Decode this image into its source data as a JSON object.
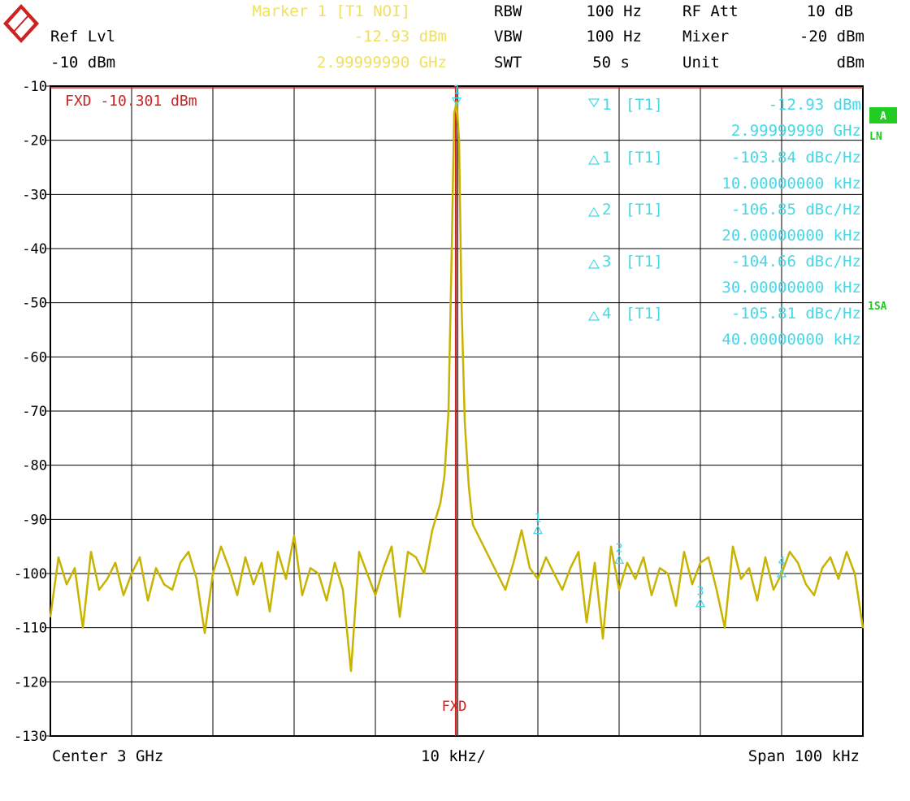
{
  "header": {
    "marker_title": "Marker 1 [T1 NOI]",
    "ref_lvl_label": "Ref Lvl",
    "ref_lvl_value": "-10 dBm",
    "marker_level": "-12.93 dBm",
    "marker_freq": "2.99999990 GHz",
    "rbw_label": "RBW",
    "rbw_value": "100 Hz",
    "vbw_label": "VBW",
    "vbw_value": "100 Hz",
    "swt_label": "SWT",
    "swt_value": "50 s",
    "rfatt_label": "RF Att",
    "rfatt_value": "10 dB",
    "mixer_label": "Mixer",
    "mixer_value": "-20 dBm",
    "unit_label": "Unit",
    "unit_value": "dBm"
  },
  "side": {
    "trace_badge": "A",
    "ln_label": "LN",
    "sa_label": "1SA"
  },
  "colors": {
    "trace": "#c8b400",
    "marker": "#44d8e8",
    "fxd": "#cc2222",
    "badge": "#22cc22"
  },
  "chart_data": {
    "type": "line",
    "x_unit": "kHz offset from center",
    "xlim": [
      -50,
      50
    ],
    "ylim": [
      -130,
      -10
    ],
    "y_ticks": [
      -10,
      -20,
      -30,
      -40,
      -50,
      -60,
      -70,
      -80,
      -90,
      -100,
      -110,
      -120,
      -130
    ],
    "x_divisions": 10,
    "grid": true,
    "footer_left": "Center 3 GHz",
    "footer_center": "10 kHz/",
    "footer_right": "Span 100 kHz",
    "fxd_label": "FXD -10.301 dBm",
    "fxd_line_label": "FXD",
    "fxd_level": -10.301,
    "fxd_x": 0,
    "series": [
      {
        "x": [
          -50,
          -49,
          -48,
          -47,
          -46,
          -45,
          -44,
          -43,
          -42,
          -41,
          -40,
          -39,
          -38,
          -37,
          -36,
          -35,
          -34,
          -33,
          -32,
          -31,
          -30,
          -29,
          -28,
          -27,
          -26,
          -25,
          -24,
          -23,
          -22,
          -21,
          -20,
          -19,
          -18,
          -17,
          -16,
          -15,
          -14,
          -13,
          -12,
          -11,
          -10,
          -9,
          -8,
          -7,
          -6,
          -5,
          -4,
          -3,
          -2,
          -1.5,
          -1,
          -0.6,
          -0.3,
          0,
          0.3,
          0.6,
          1,
          1.5,
          2,
          3,
          4,
          5,
          6,
          7,
          8,
          9,
          10,
          11,
          12,
          13,
          14,
          15,
          16,
          17,
          18,
          19,
          20,
          21,
          22,
          23,
          24,
          25,
          26,
          27,
          28,
          29,
          30,
          31,
          32,
          33,
          34,
          35,
          36,
          37,
          38,
          39,
          40,
          41,
          42,
          43,
          44,
          45,
          46,
          47,
          48,
          49,
          50
        ],
        "values": [
          -108,
          -97,
          -102,
          -99,
          -110,
          -96,
          -103,
          -101,
          -98,
          -104,
          -100,
          -97,
          -105,
          -99,
          -102,
          -103,
          -98,
          -96,
          -101,
          -111,
          -100,
          -95,
          -99,
          -104,
          -97,
          -102,
          -98,
          -107,
          -96,
          -101,
          -93,
          -104,
          -99,
          -100,
          -105,
          -98,
          -103,
          -118,
          -96,
          -100,
          -104,
          -99,
          -95,
          -108,
          -96,
          -97,
          -100,
          -92,
          -87,
          -82,
          -70,
          -40,
          -15,
          -12.93,
          -20,
          -50,
          -72,
          -84,
          -91,
          -94,
          -97,
          -100,
          -103,
          -98,
          -92,
          -99,
          -101,
          -97,
          -100,
          -103,
          -99,
          -96,
          -109,
          -98,
          -112,
          -95,
          -103,
          -98,
          -101,
          -97,
          -104,
          -99,
          -100,
          -106,
          -96,
          -102,
          -98,
          -97,
          -103,
          -110,
          -95,
          -101,
          -99,
          -105,
          -97,
          -103,
          -100,
          -96,
          -98,
          -102,
          -104,
          -99,
          -97,
          -101,
          -96,
          -100,
          -110
        ]
      }
    ],
    "markers": [
      {
        "id": "1",
        "type": "main",
        "x": 0,
        "y": -12.93,
        "label": "1",
        "text_left": "1 [T1]",
        "text_level": "-12.93 dBm",
        "text_freq": "2.99999990 GHz"
      },
      {
        "id": "d1",
        "type": "delta",
        "x": 10,
        "y": -92,
        "label": "1",
        "text_left": "1 [T1]",
        "text_level": "-103.84 dBc/Hz",
        "text_freq": "10.00000000 kHz"
      },
      {
        "id": "d2",
        "type": "delta",
        "x": 20,
        "y": -97.5,
        "label": "2",
        "text_left": "2 [T1]",
        "text_level": "-106.85 dBc/Hz",
        "text_freq": "20.00000000 kHz"
      },
      {
        "id": "d3",
        "type": "delta",
        "x": 30,
        "y": -105.5,
        "label": "3",
        "text_left": "3 [T1]",
        "text_level": "-104.66 dBc/Hz",
        "text_freq": "30.00000000 kHz"
      },
      {
        "id": "d4",
        "type": "delta",
        "x": 40,
        "y": -100,
        "label": "4",
        "text_left": "4 [T1]",
        "text_level": "-105.81 dBc/Hz",
        "text_freq": "40.00000000 kHz"
      }
    ]
  }
}
